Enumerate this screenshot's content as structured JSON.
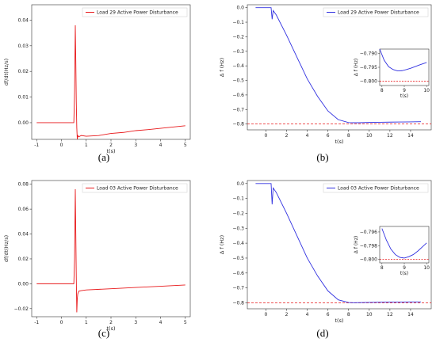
{
  "chart_data": [
    {
      "panel": "a",
      "caption": "(a)",
      "type": "line",
      "xlabel": "t(s)",
      "ylabel": "df/dt(Hz/s)",
      "xlim": [
        -1.2,
        5.2
      ],
      "ylim": [
        -0.0065,
        0.046
      ],
      "xticks": [
        -1,
        0,
        1,
        2,
        3,
        4,
        5
      ],
      "yticks": [
        0.0,
        0.01,
        0.02,
        0.03,
        0.04
      ],
      "ytick_labels": [
        "0.00",
        "0.01",
        "0.02",
        "0.03",
        "0.04"
      ],
      "legend_position": "upper-right",
      "series": [
        {
          "name": "Load 29 Active Power Disturbance",
          "color": "#e8191b",
          "x": [
            -1,
            0.0,
            0.5,
            0.53,
            0.56,
            0.58,
            0.6,
            0.62,
            0.64,
            0.66,
            0.7,
            0.8,
            1.0,
            1.5,
            2.0,
            2.5,
            3.0,
            3.5,
            4.0,
            4.5,
            5.0
          ],
          "y": [
            0.0,
            0.0,
            0.0,
            0.012,
            0.038,
            0.024,
            0.008,
            -0.002,
            -0.0065,
            -0.005,
            -0.0055,
            -0.005,
            -0.0053,
            -0.005,
            -0.0042,
            -0.0038,
            -0.0031,
            -0.0027,
            -0.0022,
            -0.0017,
            -0.0012
          ]
        }
      ]
    },
    {
      "panel": "b",
      "caption": "(b)",
      "type": "line",
      "xlabel": "t(s)",
      "ylabel": "Δ f (Hz)",
      "xlim": [
        -1.8,
        16.0
      ],
      "ylim": [
        -0.84,
        0.02
      ],
      "xticks": [
        0,
        2,
        4,
        6,
        8,
        10,
        12,
        14
      ],
      "yticks": [
        0.0,
        -0.1,
        -0.2,
        -0.3,
        -0.4,
        -0.5,
        -0.6,
        -0.7,
        -0.8
      ],
      "ytick_labels": [
        "0.0",
        "−0.1",
        "−0.2",
        "−0.3",
        "−0.4",
        "−0.5",
        "−0.6",
        "−0.7",
        "−0.8"
      ],
      "legend_position": "upper-right",
      "reference_line": {
        "y": -0.8,
        "color": "#e8191b",
        "style": "dashed"
      },
      "series": [
        {
          "name": "Load 29 Active Power Disturbance",
          "color": "#3030e0",
          "x": [
            -1,
            0.5,
            0.55,
            0.6,
            0.7,
            1,
            2,
            3,
            4,
            5,
            6,
            7,
            8,
            8.5,
            9,
            10,
            11,
            12,
            13,
            14,
            15
          ],
          "y": [
            0.0,
            0.0,
            -0.04,
            -0.08,
            -0.02,
            -0.05,
            -0.19,
            -0.34,
            -0.49,
            -0.61,
            -0.71,
            -0.77,
            -0.79,
            -0.791,
            -0.791,
            -0.789,
            -0.788,
            -0.787,
            -0.786,
            -0.785,
            -0.784
          ]
        }
      ],
      "inset": {
        "xlim": [
          7.9,
          10.1
        ],
        "ylim": [
          -0.8015,
          -0.7885
        ],
        "xticks": [
          8,
          9,
          10
        ],
        "yticks": [
          -0.79,
          -0.795,
          -0.8
        ],
        "ytick_labels": [
          "−0.790",
          "−0.795",
          "−0.800"
        ],
        "xlabel": "t(s)",
        "ylabel": "Δ f (Hz)",
        "reference_y": -0.8,
        "x": [
          7.9,
          8.1,
          8.3,
          8.5,
          8.7,
          8.9,
          9.1,
          9.3,
          9.5,
          9.7,
          10.0
        ],
        "y": [
          -0.7885,
          -0.7925,
          -0.7948,
          -0.7958,
          -0.7963,
          -0.7962,
          -0.7958,
          -0.7953,
          -0.7947,
          -0.7941,
          -0.7933
        ]
      }
    },
    {
      "panel": "c",
      "caption": "(c)",
      "type": "line",
      "xlabel": "t(s)",
      "ylabel": "df/dt(Hz/s)",
      "xlim": [
        -1.2,
        5.2
      ],
      "ylim": [
        -0.0265,
        0.083
      ],
      "xticks": [
        -1,
        0,
        1,
        2,
        3,
        4,
        5
      ],
      "yticks": [
        -0.02,
        0.0,
        0.02,
        0.04,
        0.06,
        0.08
      ],
      "ytick_labels": [
        "−0.02",
        "0.00",
        "0.02",
        "0.04",
        "0.06",
        "0.08"
      ],
      "legend_position": "upper-right",
      "series": [
        {
          "name": "Load 03 Active Power Disturbance",
          "color": "#e8191b",
          "x": [
            -1,
            0.0,
            0.5,
            0.53,
            0.56,
            0.58,
            0.6,
            0.62,
            0.64,
            0.66,
            0.7,
            0.8,
            1.0,
            2.0,
            3.0,
            4.0,
            5.0
          ],
          "y": [
            0.0,
            0.0,
            0.0,
            0.02,
            0.076,
            0.04,
            0.005,
            -0.023,
            -0.012,
            -0.008,
            -0.006,
            -0.0055,
            -0.005,
            -0.004,
            -0.003,
            -0.002,
            -0.001
          ]
        }
      ]
    },
    {
      "panel": "d",
      "caption": "(d)",
      "type": "line",
      "xlabel": "t(s)",
      "ylabel": "Δ f (Hz)",
      "xlim": [
        -1.8,
        16.0
      ],
      "ylim": [
        -0.84,
        0.02
      ],
      "xticks": [
        0,
        2,
        4,
        6,
        8,
        10,
        12,
        14
      ],
      "yticks": [
        0.0,
        -0.1,
        -0.2,
        -0.3,
        -0.4,
        -0.5,
        -0.6,
        -0.7,
        -0.8
      ],
      "ytick_labels": [
        "0.0",
        "−0.1",
        "−0.2",
        "−0.3",
        "−0.4",
        "−0.5",
        "−0.6",
        "−0.7",
        "−0.8"
      ],
      "legend_position": "upper-right",
      "reference_line": {
        "y": -0.8,
        "color": "#e8191b",
        "style": "dashed"
      },
      "series": [
        {
          "name": "Load 03 Active Power Disturbance",
          "color": "#3030e0",
          "x": [
            -1,
            0.5,
            0.55,
            0.6,
            0.7,
            1,
            2,
            3,
            4,
            5,
            6,
            7,
            8,
            8.5,
            9,
            10,
            11,
            12,
            13,
            14,
            15
          ],
          "y": [
            0.0,
            0.0,
            -0.07,
            -0.14,
            -0.03,
            -0.06,
            -0.2,
            -0.35,
            -0.5,
            -0.62,
            -0.72,
            -0.78,
            -0.798,
            -0.799,
            -0.7985,
            -0.797,
            -0.796,
            -0.795,
            -0.795,
            -0.794,
            -0.794
          ]
        }
      ],
      "inset": {
        "xlim": [
          7.9,
          10.1
        ],
        "ylim": [
          -0.8005,
          -0.7952
        ],
        "xticks": [
          8,
          9,
          10
        ],
        "yticks": [
          -0.796,
          -0.798,
          -0.8
        ],
        "ytick_labels": [
          "−0.796",
          "−0.798",
          "−0.800"
        ],
        "xlabel": "t(s)",
        "ylabel": "Δ f (Hz)",
        "reference_y": -0.8,
        "x": [
          8.0,
          8.2,
          8.4,
          8.6,
          8.8,
          9.0,
          9.2,
          9.4,
          9.6,
          9.8,
          10.0
        ],
        "y": [
          -0.7955,
          -0.7972,
          -0.7985,
          -0.7993,
          -0.7997,
          -0.7998,
          -0.7996,
          -0.7993,
          -0.7988,
          -0.7982,
          -0.7976
        ]
      }
    }
  ]
}
